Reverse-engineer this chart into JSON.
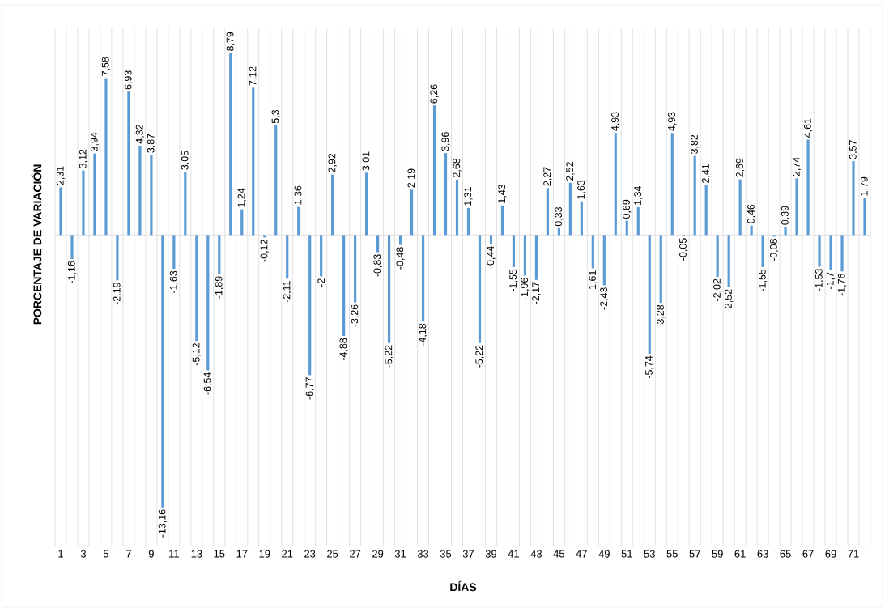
{
  "chart_data": {
    "type": "bar",
    "xlabel": "DÍAS",
    "ylabel": "PORCENTAJE DE VARIACIÓN",
    "color": "#5b9bd5",
    "grid": "x",
    "categories": [
      "1",
      null,
      "3",
      null,
      "5",
      null,
      "7",
      null,
      "9",
      null,
      "11",
      null,
      "13",
      null,
      "15",
      null,
      "17",
      null,
      "19",
      null,
      "21",
      null,
      "23",
      null,
      "25",
      null,
      "27",
      null,
      "29",
      null,
      "31",
      null,
      "33",
      null,
      "35",
      null,
      "37",
      null,
      "39",
      null,
      "41",
      null,
      "43",
      null,
      "45",
      null,
      "47",
      null,
      "49",
      null,
      "51",
      null,
      "53",
      null,
      "55",
      null,
      "57",
      null,
      "59",
      null,
      "61",
      null,
      "63",
      null,
      "65",
      null,
      "67",
      null,
      "69",
      null,
      "71",
      null
    ],
    "values": [
      2.31,
      -1.16,
      3.12,
      3.94,
      7.58,
      -2.19,
      6.93,
      4.32,
      3.87,
      -13.16,
      -1.63,
      3.05,
      -5.12,
      -6.54,
      -1.89,
      8.79,
      1.24,
      7.12,
      -0.12,
      5.3,
      -2.11,
      1.36,
      -6.77,
      -2,
      2.92,
      -4.88,
      -3.26,
      3.01,
      -0.83,
      -5.22,
      -0.48,
      2.19,
      -4.18,
      6.26,
      3.96,
      2.68,
      1.31,
      -5.22,
      -0.44,
      1.43,
      -1.55,
      -1.96,
      -2.17,
      2.27,
      0.33,
      2.52,
      1.63,
      -1.61,
      -2.43,
      4.93,
      0.69,
      1.34,
      -5.74,
      -3.28,
      4.93,
      -0.05,
      3.82,
      2.41,
      -2.02,
      -2.52,
      2.69,
      0.46,
      -1.55,
      -0.08,
      0.39,
      2.74,
      4.61,
      -1.53,
      -1.7,
      -1.76,
      3.57,
      1.79
    ],
    "value_labels": [
      "2,31",
      "-1,16",
      "3,12",
      "3,94",
      "7,58",
      "-2,19",
      "6,93",
      "4,32",
      "3,87",
      "-13,16",
      "-1,63",
      "3,05",
      "-5,12",
      "-6,54",
      "-1,89",
      "8,79",
      "1,24",
      "7,12",
      "-0,12",
      "5,3",
      "-2,11",
      "1,36",
      "-6,77",
      "-2",
      "2,92",
      "-4,88",
      "-3,26",
      "3,01",
      "-0,83",
      "-5,22",
      "-0,48",
      "2,19",
      "-4,18",
      "6,26",
      "3,96",
      "2,68",
      "1,31",
      "-5,22",
      "-0,44",
      "1,43",
      "-1,55",
      "-1,96",
      "-2,17",
      "2,27",
      "0,33",
      "2,52",
      "1,63",
      "-1,61",
      "-2,43",
      "4,93",
      "0,69",
      "1,34",
      "-5,74",
      "-3,28",
      "4,93",
      "-0,05",
      "3,82",
      "2,41",
      "-2,02",
      "-2,52",
      "2,69",
      "0,46",
      "-1,55",
      "-0,08",
      "0,39",
      "2,74",
      "4,61",
      "-1,53",
      "-1,7",
      "-1,76",
      "3,57",
      "1,79"
    ]
  }
}
